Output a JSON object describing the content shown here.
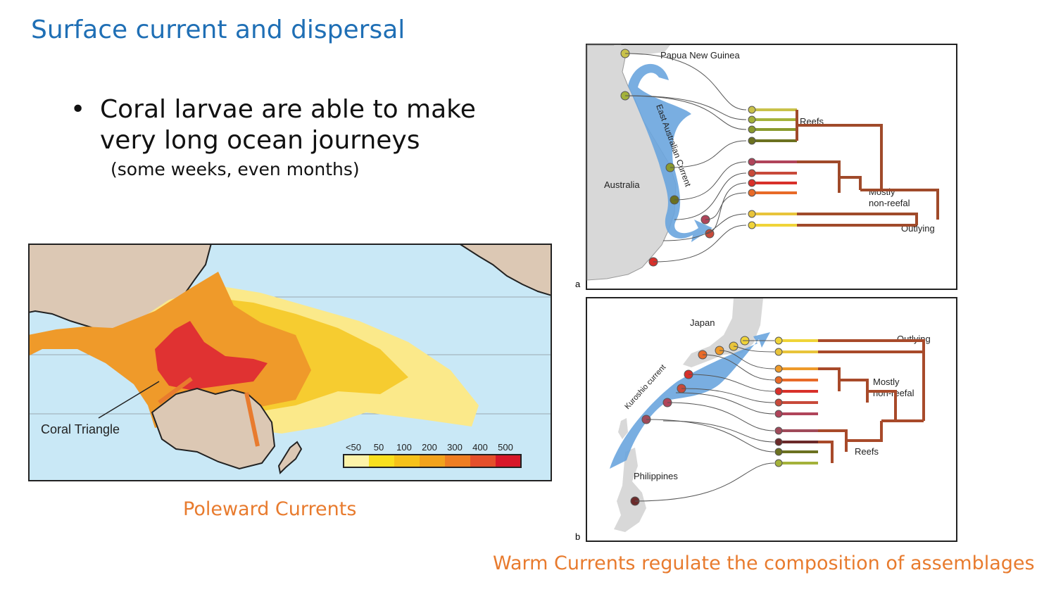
{
  "slide": {
    "title": "Surface current and dispersal",
    "bullet": "Coral larvae are able to make very long ocean journeys",
    "sub_bullet": "(some weeks, even months)",
    "caption_left": "Poleward Currents",
    "caption_right": "Warm Currents regulate the composition of assemblages"
  },
  "world_map": {
    "coral_triangle_label": "Coral Triangle",
    "legend_ticks": [
      "<50",
      "50",
      "100",
      "200",
      "300",
      "400",
      "500"
    ],
    "legend_colors": [
      "#fdf3a8",
      "#f8e01e",
      "#f5c21a",
      "#f2a31c",
      "#ee7e22",
      "#e4502c",
      "#d7182a"
    ],
    "ocean_color": "#c9e8f6",
    "land_color": "#dcc8b4"
  },
  "panel_a": {
    "letter": "a",
    "png_label": "Papua New Guinea",
    "australia_label": "Australia",
    "current_label": "East Australian Current",
    "reefs_label": "Reefs",
    "mostly_label_1": "Mostly",
    "mostly_label_2": "non-reefal",
    "outlying_label": "Outlying"
  },
  "panel_b": {
    "letter": "b",
    "japan_label": "Japan",
    "philippines_label": "Philippines",
    "current_label": "Kuroshio current",
    "outlying_label": "Outlying",
    "mostly_label_1": "Mostly",
    "mostly_label_2": "non-reefal",
    "reefs_label": "Reefs"
  }
}
